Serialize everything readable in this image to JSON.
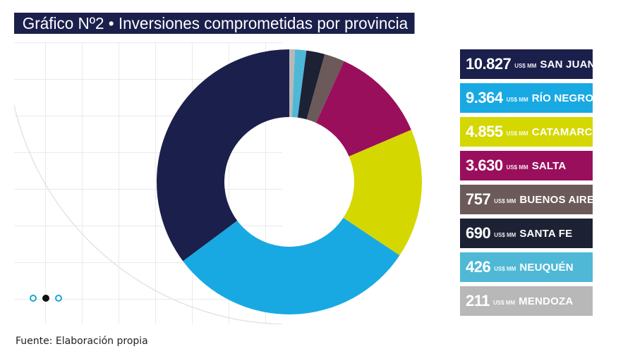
{
  "title": "Gráfico Nº2 • Inversiones comprometidas por provincia",
  "source": "Fuente: Elaboración propia",
  "pagination": {
    "total": 3,
    "active": 1
  },
  "chart_data": {
    "type": "pie",
    "style": "donut",
    "title": "Gráfico Nº2 • Inversiones comprometidas por provincia",
    "unit": "US$ MM",
    "categories": [
      "SAN JUAN",
      "RÍO NEGRO",
      "CATAMARCA",
      "SALTA",
      "BUENOS AIRES",
      "SANTA FE",
      "NEUQUÉN",
      "MENDOZA"
    ],
    "values": [
      10827,
      9364,
      4855,
      3630,
      757,
      690,
      426,
      211
    ],
    "labels": [
      "10.827",
      "9.364",
      "4.855",
      "3.630",
      "757",
      "690",
      "426",
      "211"
    ],
    "colors": [
      "#1b1f4b",
      "#18a9e3",
      "#d4d700",
      "#9a0f5c",
      "#6b5a59",
      "#1c2133",
      "#4fb8d6",
      "#b8b8b8"
    ],
    "start_order": [
      7,
      6,
      5,
      4,
      3,
      2,
      1,
      0
    ],
    "legend_position": "right"
  }
}
